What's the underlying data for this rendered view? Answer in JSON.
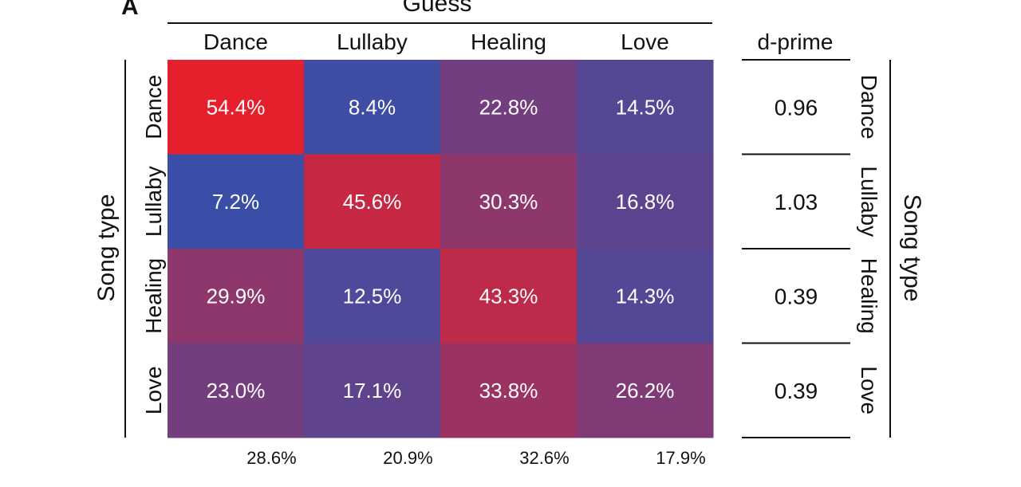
{
  "panel_label": "A",
  "chart_data": {
    "type": "heatmap",
    "title": "Guess",
    "xlabel": "Guess",
    "ylabel": "Song type",
    "columns": [
      "Dance",
      "Lullaby",
      "Healing",
      "Love"
    ],
    "rows": [
      "Dance",
      "Lullaby",
      "Healing",
      "Love"
    ],
    "values": [
      [
        54.4,
        8.4,
        22.8,
        14.5
      ],
      [
        7.2,
        45.6,
        30.3,
        16.8
      ],
      [
        29.9,
        12.5,
        43.3,
        14.3
      ],
      [
        23.0,
        17.1,
        33.8,
        26.2
      ]
    ],
    "cell_labels": [
      [
        "54.4%",
        "8.4%",
        "22.8%",
        "14.5%"
      ],
      [
        "7.2%",
        "45.6%",
        "30.3%",
        "16.8%"
      ],
      [
        "29.9%",
        "12.5%",
        "43.3%",
        "14.3%"
      ],
      [
        "23.0%",
        "17.1%",
        "33.8%",
        "26.2%"
      ]
    ],
    "column_totals": [
      "28.6%",
      "20.9%",
      "32.6%",
      "17.9%"
    ],
    "dprime": {
      "header": "d-prime",
      "values": [
        "0.96",
        "1.03",
        "0.39",
        "0.39"
      ],
      "row_labels": [
        "Dance",
        "Lullaby",
        "Healing",
        "Love"
      ],
      "ylabel": "Song type"
    },
    "color_scale": {
      "low": "#3a4ea8",
      "high": "#e81e2a",
      "vmin": 7,
      "vmax": 55
    }
  }
}
